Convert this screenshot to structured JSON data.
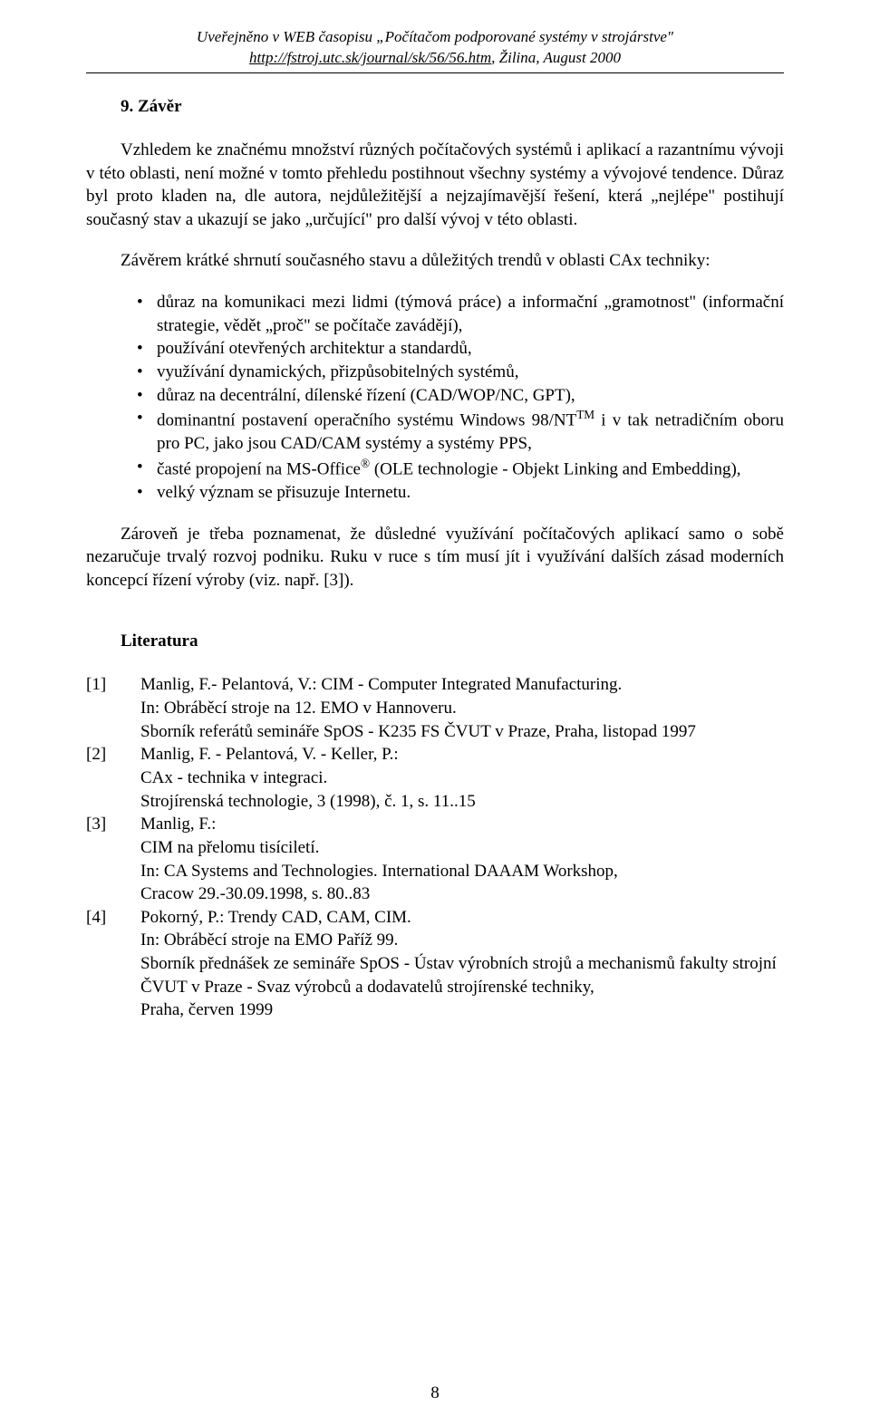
{
  "header": {
    "line1": "Uveřejněno v WEB časopisu „Počítačom podporované systémy v strojárstve\"",
    "url": "http://fstroj.utc.sk/journal/sk/56/56.htm",
    "line2_suffix": ", Žilina, August 2000"
  },
  "section": {
    "title": "9. Závěr",
    "p1": "Vzhledem ke značnému množství různých počítačových systémů i aplikací a razantnímu vývoji v této oblasti, není možné v tomto přehledu postihnout všechny systémy a vývojové tendence. Důraz byl proto kladen na, dle autora, nejdůležitější a nejzajímavější řešení, která „nejlépe\" postihují současný stav a ukazují se jako „určující\" pro další vývoj v této oblasti.",
    "p2": "Závěrem krátké shrnutí současného stavu a důležitých trendů v oblasti CAx techniky:",
    "bullets": [
      "důraz na komunikaci mezi lidmi (týmová práce) a informační „gramotnost\" (informační strategie, vědět „proč\" se počítače zavádějí),",
      "používání otevřených architektur a standardů,",
      "využívání dynamických, přizpůsobitelných systémů,",
      "důraz na decentrální, dílenské řízení (CAD/WOP/NC, GPT),",
      "dominantní postavení operačního systému Windows 98/NT<sup>TM</sup> i v tak netradičním oboru pro PC, jako jsou CAD/CAM systémy a systémy PPS,",
      "časté propojení na MS-Office<sup>®</sup> (OLE technologie - Objekt Linking and Embedding),",
      "velký význam se přisuzuje Internetu."
    ],
    "p3": "Zároveň je třeba poznamenat, že důsledné využívání počítačových aplikací samo o sobě nezaručuje trvalý rozvoj podniku. Ruku v ruce s tím musí jít i využívání dalších zásad moderních koncepcí řízení výroby (viz. např. [3])."
  },
  "literature": {
    "title": "Literatura",
    "refs": [
      {
        "num": "[1]",
        "body": "Manlig, F.- Pelantová, V.: CIM - Computer Integrated Manufacturing.<br>In: Obráběcí stroje na 12. EMO v Hannoveru.<br>Sborník referátů semináře SpOS - K235 FS ČVUT v Praze, Praha, listopad 1997"
      },
      {
        "num": "[2]",
        "body": "Manlig, F. - Pelantová, V. - Keller, P.:<br>CAx - technika v integraci.<br>Strojírenská technologie, 3 (1998), č. 1, s. 11..15"
      },
      {
        "num": "[3]",
        "body": "Manlig, F.:<br>CIM na přelomu tisíciletí.<br>In: CA Systems and Technologies. International DAAAM Workshop,<br>Cracow 29.-30.09.1998, s. 80..83"
      },
      {
        "num": "[4]",
        "body": "Pokorný, P.: Trendy CAD, CAM, CIM.<br>In: Obráběcí stroje na EMO Paříž 99.<br>Sborník přednášek ze semináře SpOS - Ústav výrobních strojů a mechanismů fakulty strojní ČVUT v Praze - Svaz výrobců a dodavatelů strojírenské techniky,<br>Praha, červen 1999"
      }
    ]
  },
  "page_number": "8"
}
